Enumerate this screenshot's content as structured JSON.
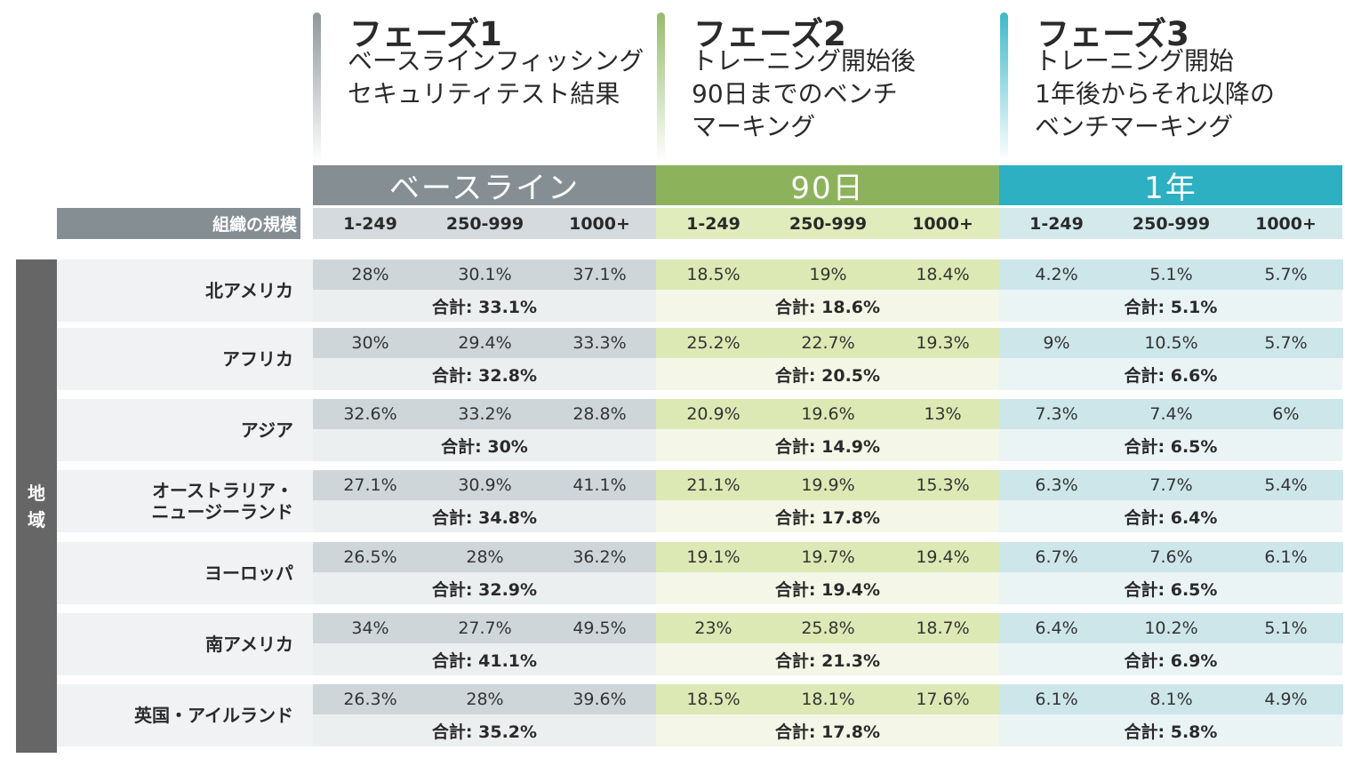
{
  "colors": {
    "baseline": "#858f93",
    "d90": "#8db25c",
    "y1": "#2cb0c2",
    "size_bar": "#858f93",
    "side_bar": "#666666"
  },
  "phases": [
    {
      "title": "フェーズ1",
      "lines": [
        "ベースラインフィッシング",
        "セキュリティテスト結果"
      ]
    },
    {
      "title": "フェーズ2",
      "lines": [
        "トレーニング開始後",
        "90日までのベンチ",
        "マーキング"
      ]
    },
    {
      "title": "フェーズ3",
      "lines": [
        "トレーニング開始",
        "1年後からそれ以降の",
        "ベンチマーキング"
      ]
    }
  ],
  "size_label": "組織の規模",
  "side_label": [
    "地",
    "域"
  ],
  "chart_data": {
    "type": "table",
    "periods": [
      "ベースライン",
      "90日",
      "1年"
    ],
    "size_categories": [
      "1-249",
      "250-999",
      "1000+"
    ],
    "total_prefix": "合計: ",
    "rows": [
      {
        "region": "北アメリカ",
        "values": [
          [
            "28%",
            "30.1%",
            "37.1%"
          ],
          [
            "18.5%",
            "19%",
            "18.4%"
          ],
          [
            "4.2%",
            "5.1%",
            "5.7%"
          ]
        ],
        "totals": [
          "33.1%",
          "18.6%",
          "5.1%"
        ]
      },
      {
        "region": "アフリカ",
        "values": [
          [
            "30%",
            "29.4%",
            "33.3%"
          ],
          [
            "25.2%",
            "22.7%",
            "19.3%"
          ],
          [
            "9%",
            "10.5%",
            "5.7%"
          ]
        ],
        "totals": [
          "32.8%",
          "20.5%",
          "6.6%"
        ]
      },
      {
        "region": "アジア",
        "values": [
          [
            "32.6%",
            "33.2%",
            "28.8%"
          ],
          [
            "20.9%",
            "19.6%",
            "13%"
          ],
          [
            "7.3%",
            "7.4%",
            "6%"
          ]
        ],
        "totals": [
          "30%",
          "14.9%",
          "6.5%"
        ]
      },
      {
        "region": "オーストラリア・\nニュージーランド",
        "values": [
          [
            "27.1%",
            "30.9%",
            "41.1%"
          ],
          [
            "21.1%",
            "19.9%",
            "15.3%"
          ],
          [
            "6.3%",
            "7.7%",
            "5.4%"
          ]
        ],
        "totals": [
          "34.8%",
          "17.8%",
          "6.4%"
        ]
      },
      {
        "region": "ヨーロッパ",
        "values": [
          [
            "26.5%",
            "28%",
            "36.2%"
          ],
          [
            "19.1%",
            "19.7%",
            "19.4%"
          ],
          [
            "6.7%",
            "7.6%",
            "6.1%"
          ]
        ],
        "totals": [
          "32.9%",
          "19.4%",
          "6.5%"
        ]
      },
      {
        "region": "南アメリカ",
        "values": [
          [
            "34%",
            "27.7%",
            "49.5%"
          ],
          [
            "23%",
            "25.8%",
            "18.7%"
          ],
          [
            "6.4%",
            "10.2%",
            "5.1%"
          ]
        ],
        "totals": [
          "41.1%",
          "21.3%",
          "6.9%"
        ]
      },
      {
        "region": "英国・アイルランド",
        "values": [
          [
            "26.3%",
            "28%",
            "39.6%"
          ],
          [
            "18.5%",
            "18.1%",
            "17.6%"
          ],
          [
            "6.1%",
            "8.1%",
            "4.9%"
          ]
        ],
        "totals": [
          "35.2%",
          "17.8%",
          "5.8%"
        ]
      }
    ]
  }
}
